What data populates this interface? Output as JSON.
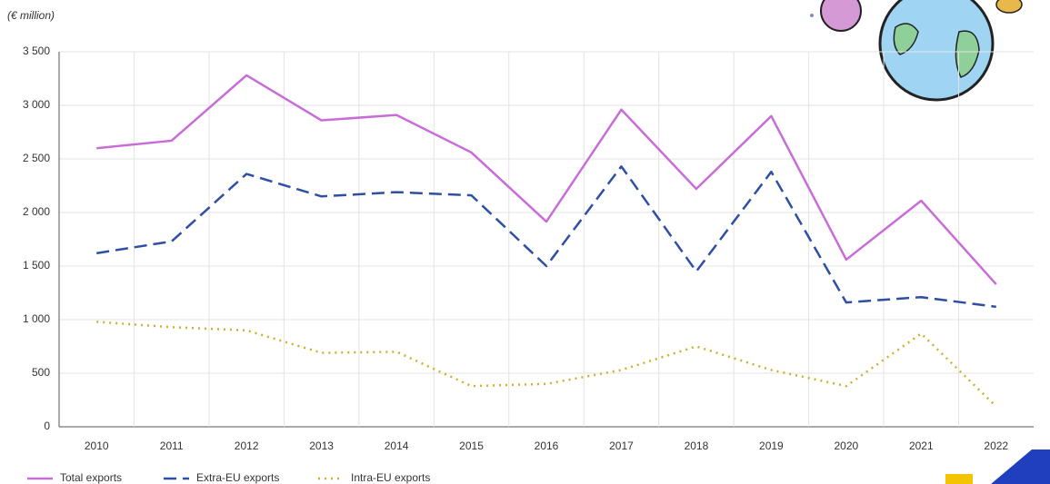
{
  "chart_data": {
    "type": "line",
    "subtitle": "(€ million)",
    "categories": [
      "2010",
      "2011",
      "2012",
      "2013",
      "2014",
      "2015",
      "2016",
      "2017",
      "2018",
      "2019",
      "2020",
      "2021",
      "2022"
    ],
    "series": [
      {
        "name": "Total exports",
        "color": "#c86dd7",
        "dash": "solid",
        "values": [
          2600,
          2670,
          3280,
          2860,
          2910,
          2560,
          1915,
          2960,
          2220,
          2900,
          1560,
          2110,
          1330
        ]
      },
      {
        "name": "Extra-EU exports",
        "color": "#2e4fa3",
        "dash": "dashed",
        "values": [
          1620,
          1730,
          2360,
          2150,
          2190,
          2160,
          1500,
          2430,
          1450,
          2380,
          1160,
          1210,
          1120
        ]
      },
      {
        "name": "Intra-EU exports",
        "color": "#c9b22e",
        "dash": "dotted",
        "values": [
          980,
          930,
          900,
          690,
          700,
          380,
          400,
          530,
          750,
          530,
          380,
          870,
          190
        ]
      }
    ],
    "ylim": [
      0,
      3500
    ],
    "yticks": [
      0,
      500,
      {
        "value": 1000,
        "label": "1 000"
      },
      {
        "value": 1500,
        "label": "1 500"
      },
      {
        "value": 2000,
        "label": "2 000"
      },
      {
        "value": 2500,
        "label": "2 500"
      },
      {
        "value": 3000,
        "label": "3 000"
      },
      {
        "value": 3500,
        "label": "3 500"
      }
    ],
    "grid": true,
    "legend": "bottom-left"
  }
}
